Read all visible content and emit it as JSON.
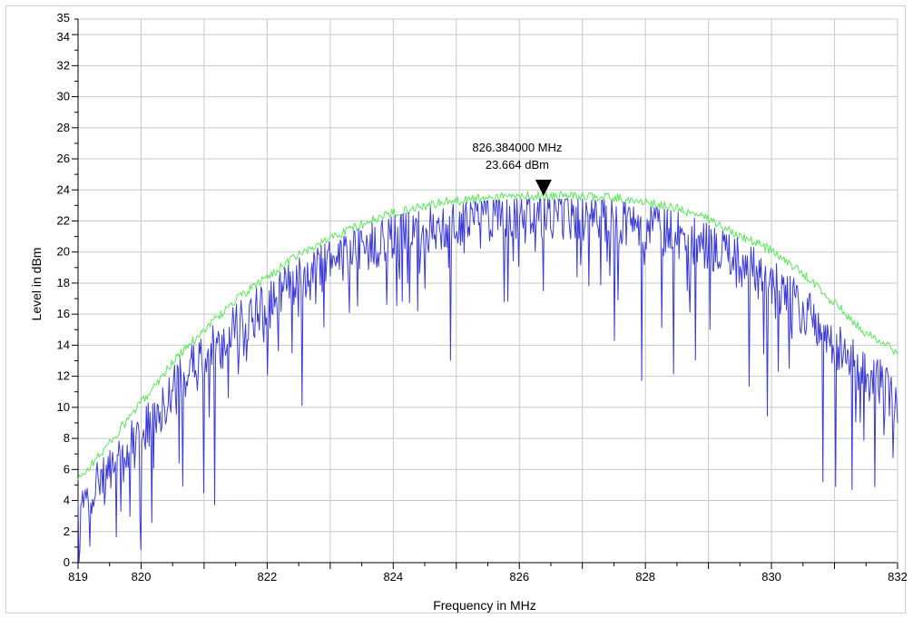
{
  "chart_data": {
    "type": "line",
    "title": "",
    "xlabel": "Frequency in MHz",
    "ylabel": "Level in dBm",
    "xlim": [
      819,
      832
    ],
    "ylim": [
      0,
      35
    ],
    "x_ticks": [
      "819",
      "820",
      "822",
      "824",
      "826",
      "828",
      "830",
      "832"
    ],
    "x_tick_values": [
      819,
      820,
      822,
      824,
      826,
      828,
      830,
      832
    ],
    "y_ticks": [
      "0",
      "2",
      "4",
      "6",
      "8",
      "10",
      "12",
      "14",
      "16",
      "18",
      "20",
      "22",
      "24",
      "26",
      "28",
      "30",
      "32",
      "34",
      "35"
    ],
    "y_tick_values": [
      0,
      2,
      4,
      6,
      8,
      10,
      12,
      14,
      16,
      18,
      20,
      22,
      24,
      26,
      28,
      30,
      32,
      34,
      35
    ],
    "grid": true,
    "legend": "none",
    "series": [
      {
        "color": "#5ee65e",
        "x": [
          819.0,
          819.5,
          820.0,
          820.5,
          821.0,
          821.5,
          822.0,
          822.5,
          823.0,
          823.5,
          824.0,
          824.5,
          825.0,
          825.5,
          826.0,
          826.5,
          827.0,
          827.5,
          828.0,
          828.5,
          829.0,
          829.5,
          830.0,
          830.5,
          831.0,
          831.5,
          832.0
        ],
        "y": [
          5.3,
          7.7,
          10.3,
          12.9,
          15.0,
          16.9,
          18.4,
          19.8,
          20.9,
          21.8,
          22.5,
          23.0,
          23.3,
          23.5,
          23.6,
          23.6,
          23.6,
          23.5,
          23.2,
          22.8,
          22.1,
          21.1,
          20.1,
          18.6,
          16.7,
          14.8,
          13.5
        ],
        "noise": 0.3
      },
      {
        "color": "#3b3bd6",
        "x": [
          819.0,
          819.5,
          820.0,
          820.5,
          821.0,
          821.5,
          822.0,
          822.5,
          823.0,
          823.5,
          824.0,
          824.5,
          825.0,
          825.5,
          826.0,
          826.5,
          827.0,
          827.5,
          828.0,
          828.5,
          829.0,
          829.5,
          830.0,
          830.5,
          831.0,
          831.5,
          832.0
        ],
        "y": [
          3.8,
          5.6,
          8.3,
          10.9,
          13.2,
          15.0,
          16.6,
          18.1,
          19.3,
          20.3,
          21.1,
          21.6,
          22.0,
          22.3,
          22.5,
          22.5,
          22.4,
          22.2,
          21.8,
          21.2,
          20.3,
          19.3,
          18.0,
          16.3,
          14.3,
          12.2,
          10.5
        ],
        "noise": 1.7
      }
    ],
    "marker": {
      "x": 826.384,
      "y": 23.664,
      "label_freq": "826.384000 MHz",
      "label_level": "23.664 dBm"
    }
  }
}
